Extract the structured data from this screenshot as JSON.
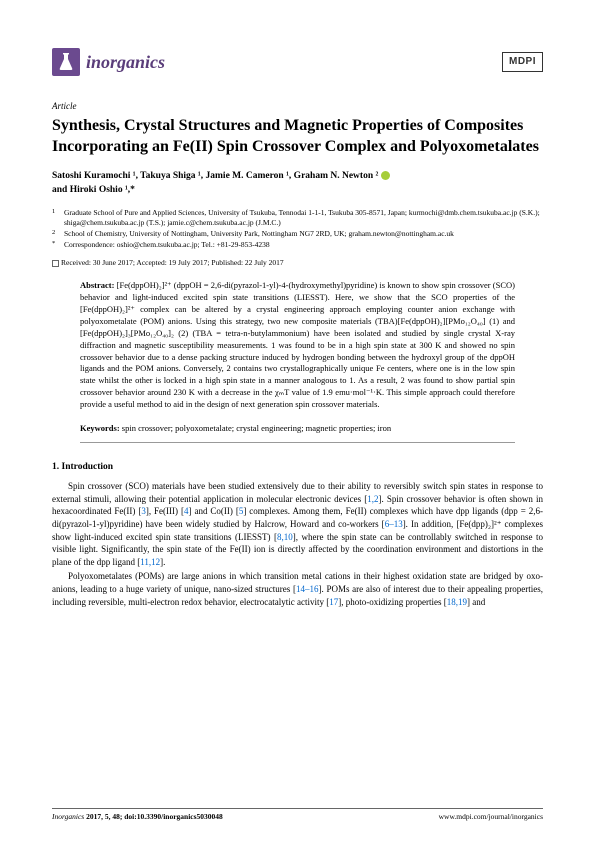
{
  "header": {
    "journal_name": "inorganics",
    "publisher_logo": "MDPI"
  },
  "article_type": "Article",
  "title": "Synthesis, Crystal Structures and Magnetic Properties of Composites Incorporating an Fe(II) Spin Crossover Complex and Polyoxometalates",
  "authors_line1": "Satoshi Kuramochi ¹, Takuya Shiga ¹, Jamie M. Cameron ¹, Graham N. Newton ²",
  "authors_line2": "and Hiroki Oshio ¹,*",
  "affiliations": {
    "a1_num": "1",
    "a1": "Graduate School of Pure and Applied Sciences, University of Tsukuba, Tennodai 1-1-1, Tsukuba 305-8571, Japan; kurmochi@dmb.chem.tsukuba.ac.jp (S.K.); shiga@chem.tsukuba.ac.jp (T.S.); jamie.c@chem.tsukuba.ac.jp (J.M.C.)",
    "a2_num": "2",
    "a2": "School of Chemistry, University of Nottingham, University Park, Nottingham NG7 2RD, UK; graham.newton@nottingham.ac.uk",
    "corr_sym": "*",
    "corr": "Correspondence: oshio@chem.tsukuba.ac.jp; Tel.: +81-29-853-4238"
  },
  "dates": "Received: 30 June 2017; Accepted: 19 July 2017; Published: 22 July 2017",
  "abstract_label": "Abstract:",
  "abstract": " [Fe(dppOH)₂]²⁺ (dppOH = 2,6-di(pyrazol-1-yl)-4-(hydroxymethyl)pyridine) is known to show spin crossover (SCO) behavior and light-induced excited spin state transitions (LIESST). Here, we show that the SCO properties of the [Fe(dppOH)₂]²⁺ complex can be altered by a crystal engineering approach employing counter anion exchange with polyoxometalate (POM) anions. Using this strategy, two new composite materials (TBA)[Fe(dppOH)₂][PMo₁₂O₄₀] (1) and [Fe(dppOH)₂]₃[PMo₁₂O₄₀]₂ (2) (TBA = tetra-n-butylammonium) have been isolated and studied by single crystal X-ray diffraction and magnetic susceptibility measurements. 1 was found to be in a high spin state at 300 K and showed no spin crossover behavior due to a dense packing structure induced by hydrogen bonding between the hydroxyl group of the dppOH ligands and the POM anions. Conversely, 2 contains two crystallographically unique Fe centers, where one is in the low spin state whilst the other is locked in a high spin state in a manner analogous to 1. As a result, 2 was found to show partial spin crossover behavior around 230 K with a decrease in the χₘT value of 1.9 emu·mol⁻¹·K. This simple approach could therefore provide a useful method to aid in the design of next generation spin crossover materials.",
  "keywords_label": "Keywords:",
  "keywords": " spin crossover; polyoxometalate; crystal engineering; magnetic properties; iron",
  "section1_heading": "1. Introduction",
  "para1": "Spin crossover (SCO) materials have been studied extensively due to their ability to reversibly switch spin states in response to external stimuli, allowing their potential application in molecular electronic devices [1,2]. Spin crossover behavior is often shown in hexacoordinated Fe(II) [3], Fe(III) [4] and Co(II) [5] complexes. Among them, Fe(II) complexes which have dpp ligands (dpp = 2,6-di(pyrazol-1-yl)pyridine) have been widely studied by Halcrow, Howard and co-workers [6–13]. In addition, [Fe(dpp)₂]²⁺ complexes show light-induced excited spin state transitions (LIESST) [8,10], where the spin state can be controllably switched in response to visible light. Significantly, the spin state of the Fe(II) ion is directly affected by the coordination environment and distortions in the plane of the dpp ligand [11,12].",
  "para2": "Polyoxometalates (POMs) are large anions in which transition metal cations in their highest oxidation state are bridged by oxo-anions, leading to a huge variety of unique, nano-sized structures [14–16]. POMs are also of interest due to their appealing properties, including reversible, multi-electron redox behavior, electrocatalytic activity [17], photo-oxidizing properties [18,19] and",
  "footer": {
    "left_italic": "Inorganics",
    "left_rest": " 2017, 5, 48; doi:10.3390/inorganics5030048",
    "right": "www.mdpi.com/journal/inorganics"
  },
  "colors": {
    "logo_bg": "#6b4a8f",
    "journal_text": "#5a3d7a",
    "link": "#0066cc",
    "orcid": "#a6ce39"
  }
}
